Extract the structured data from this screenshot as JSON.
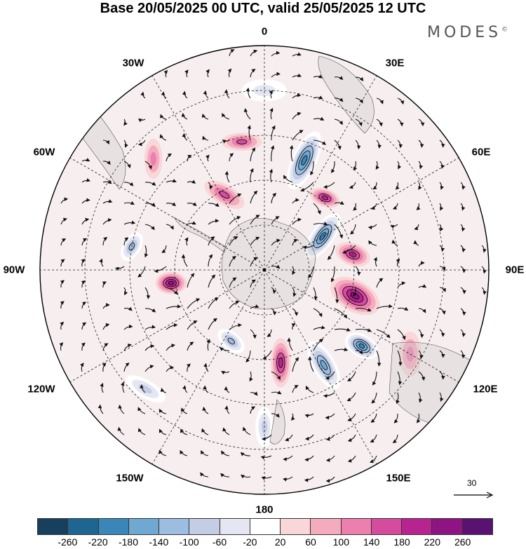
{
  "title": "Base 20/05/2025 00 UTC, valid 25/05/2025 12 UTC",
  "brand": "MODES",
  "brand_mark": "©",
  "longitude_labels": {
    "lon_0": "0",
    "lon_30e": "30E",
    "lon_60e": "60E",
    "lon_90e": "90E",
    "lon_120e": "120E",
    "lon_150e": "150E",
    "lon_180": "180",
    "lon_150w": "150W",
    "lon_120w": "120W",
    "lon_90w": "90W",
    "lon_60w": "60W",
    "lon_30w": "30W"
  },
  "reference_vector": {
    "label": "30"
  },
  "colorbar": {
    "colors": [
      "#17405e",
      "#1f6592",
      "#3b86b8",
      "#6fa9d1",
      "#9cbde0",
      "#c4cde6",
      "#e4e6f2",
      "#ffffff",
      "#f9d6d8",
      "#f4abbd",
      "#ec7fae",
      "#d54c9f",
      "#b8248f",
      "#8d1482",
      "#5a1270"
    ],
    "ticks": [
      "-260",
      "-220",
      "-180",
      "-140",
      "-100",
      "-60",
      "-20",
      "20",
      "60",
      "100",
      "140",
      "180",
      "220",
      "260"
    ]
  },
  "anomaly_fields": [
    {
      "value": -200,
      "cx": 60,
      "cy": 30,
      "rx": 12,
      "ry": 5,
      "rot": -55
    },
    {
      "value": -210,
      "cx": 20,
      "cy": 52,
      "rx": 14,
      "ry": 5.5,
      "rot": -65
    },
    {
      "value": -160,
      "cx": 148,
      "cy": 50,
      "rx": 12,
      "ry": 5,
      "rot": 60
    },
    {
      "value": -180,
      "cx": 128,
      "cy": 55,
      "rx": 8,
      "ry": 5,
      "rot": 30
    },
    {
      "value": -130,
      "cx": 205,
      "cy": 35,
      "rx": 7,
      "ry": 4,
      "rot": 40
    },
    {
      "value": -110,
      "cx": 280,
      "cy": 60,
      "rx": 7,
      "ry": 4,
      "rot": 120
    },
    {
      "value": 200,
      "cx": 106,
      "cy": 42,
      "rx": 12,
      "ry": 7,
      "rot": 30
    },
    {
      "value": 160,
      "cx": 80,
      "cy": 40,
      "rx": 8,
      "ry": 5,
      "rot": 20
    },
    {
      "value": 170,
      "cx": 170,
      "cy": 42,
      "rx": 11,
      "ry": 4.5,
      "rot": 90
    },
    {
      "value": 210,
      "cx": 262,
      "cy": 42,
      "rx": 7,
      "ry": 5,
      "rot": 0
    },
    {
      "value": 140,
      "cx": 40,
      "cy": 42,
      "rx": 7,
      "ry": 4,
      "rot": 20
    },
    {
      "value": 120,
      "cx": 332,
      "cy": 38,
      "rx": 10,
      "ry": 4.5,
      "rot": 30
    },
    {
      "value": 100,
      "cx": 350,
      "cy": 58,
      "rx": 9,
      "ry": 4,
      "rot": 0
    },
    {
      "value": 80,
      "cx": 315,
      "cy": 70,
      "rx": 9,
      "ry": 4,
      "rot": 90
    },
    {
      "value": 60,
      "cx": 120,
      "cy": 75,
      "rx": 10,
      "ry": 5,
      "rot": 90
    },
    {
      "value": -80,
      "cx": 180,
      "cy": 70,
      "rx": 9,
      "ry": 4,
      "rot": 90
    },
    {
      "value": -60,
      "cx": 225,
      "cy": 75,
      "rx": 10,
      "ry": 4,
      "rot": 30
    },
    {
      "value": -40,
      "cx": 0,
      "cy": 80,
      "rx": 10,
      "ry": 5,
      "rot": 0
    }
  ]
}
